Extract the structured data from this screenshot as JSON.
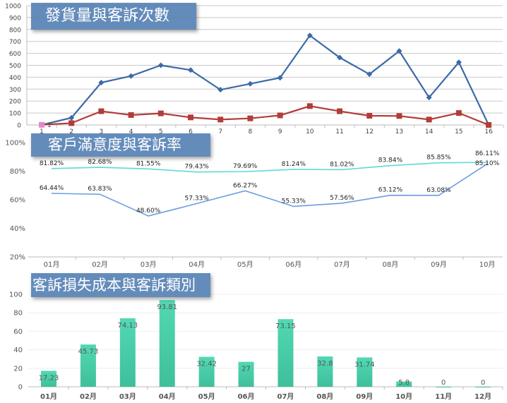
{
  "chart_data": [
    {
      "type": "line",
      "title": "發貨量與客訴次數",
      "categories": [
        "1",
        "2",
        "3",
        "4",
        "5",
        "6",
        "7",
        "8",
        "9",
        "10",
        "11",
        "12",
        "13",
        "14",
        "15",
        "16"
      ],
      "ylim": [
        0,
        1000
      ],
      "yticks": [
        "0",
        "100",
        "200",
        "300",
        "400",
        "500",
        "600",
        "700",
        "800",
        "900",
        "1000"
      ],
      "grid": true,
      "series": [
        {
          "values": [
            0,
            60,
            355,
            410,
            500,
            460,
            295,
            345,
            395,
            750,
            565,
            425,
            620,
            230,
            525,
            0
          ],
          "color": "#3c6aa8",
          "marker": "diamond"
        },
        {
          "values": [
            1,
            15,
            115,
            83,
            97,
            63,
            45,
            55,
            80,
            158,
            115,
            77,
            75,
            45,
            100,
            0
          ],
          "color": "#b23c3a",
          "marker": "square"
        }
      ],
      "data_labels": [
        {
          "series": 1,
          "index": 0,
          "text": "1"
        }
      ]
    },
    {
      "type": "line",
      "title": "客戶滿意度與客訴率",
      "categories": [
        "01月",
        "02月",
        "03月",
        "04月",
        "05月",
        "06月",
        "07月",
        "08月",
        "09月",
        "10月"
      ],
      "ylim": [
        20,
        100
      ],
      "yticks": [
        "20%",
        "40%",
        "60%",
        "80%",
        "100%"
      ],
      "grid": false,
      "series": [
        {
          "values": [
            81.82,
            82.68,
            81.55,
            79.43,
            79.69,
            81.24,
            81.02,
            83.84,
            85.85,
            86.11
          ],
          "labels": [
            "81.82%",
            "82.68%",
            "81.55%",
            "79.43%",
            "79.69%",
            "81.24%",
            "81.02%",
            "83.84%",
            "85.85%",
            "86.11%"
          ],
          "color": "#5fd8d8"
        },
        {
          "values": [
            64.44,
            63.83,
            48.6,
            57.33,
            66.27,
            55.33,
            57.56,
            63.12,
            63.08,
            85.1
          ],
          "labels": [
            "64.44%",
            "63.83%",
            "48.60%",
            "57.33%",
            "66.27%",
            "55.33%",
            "57.56%",
            "63.12%",
            "63.08%",
            "85.10%"
          ],
          "color": "#6a9ee0"
        }
      ]
    },
    {
      "type": "bar",
      "title": "客訴損失成本與客訴類別",
      "categories": [
        "01月",
        "02月",
        "03月",
        "04月",
        "05月",
        "06月",
        "07月",
        "08月",
        "09月",
        "10月",
        "11月",
        "12月"
      ],
      "values": [
        17.23,
        45.73,
        74.13,
        93.81,
        32.42,
        27,
        73.15,
        32.8,
        31.74,
        5.8,
        0,
        0
      ],
      "labels": [
        "17.23",
        "45.73",
        "74.13",
        "93.81",
        "32.42",
        "27",
        "73.15",
        "32.8",
        "31.74",
        "5.8",
        "0",
        "0"
      ],
      "ylim": [
        0,
        100
      ],
      "yticks": [
        "0",
        "20",
        "40",
        "60",
        "80",
        "100"
      ],
      "grid": true,
      "color": "#45c9a6"
    }
  ]
}
